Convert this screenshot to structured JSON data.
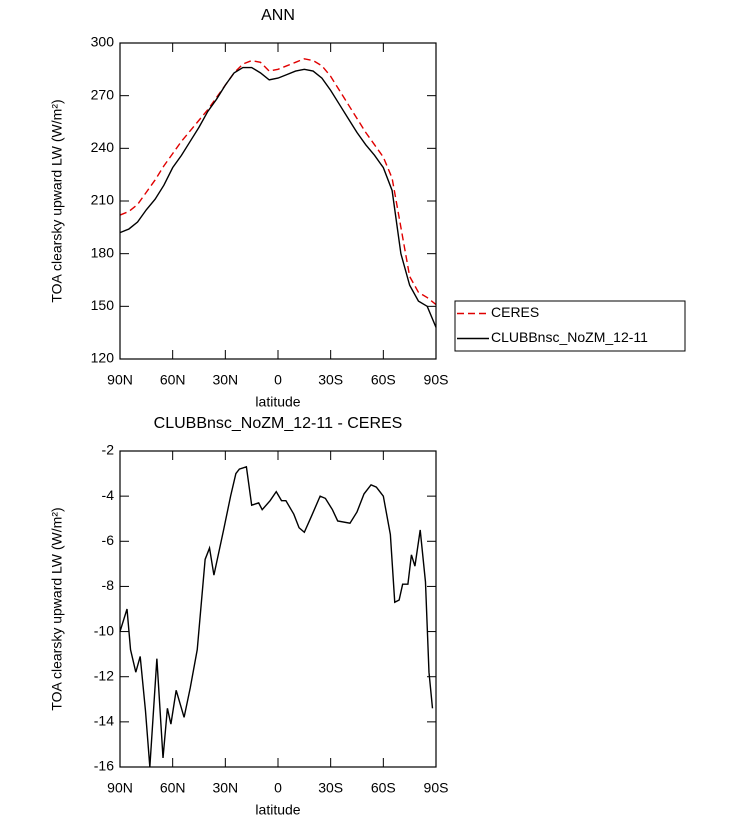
{
  "chart_data": [
    {
      "type": "line",
      "title": "ANN",
      "xlabel": "latitude",
      "ylabel": "TOA clearsky upward LW (W/m²)",
      "x": [
        90,
        85,
        80,
        75,
        70,
        65,
        60,
        55,
        50,
        45,
        40,
        35,
        30,
        25,
        20,
        15,
        10,
        5,
        0,
        -5,
        -10,
        -15,
        -20,
        -25,
        -30,
        -35,
        -40,
        -45,
        -50,
        -55,
        -60,
        -65,
        -70,
        -75,
        -80,
        -85,
        -90
      ],
      "xlim": [
        90,
        -90
      ],
      "xticks": [
        {
          "value": 90,
          "label": "90N"
        },
        {
          "value": 60,
          "label": "60N"
        },
        {
          "value": 30,
          "label": "30N"
        },
        0,
        {
          "value": -30,
          "label": "30S"
        },
        {
          "value": -60,
          "label": "60S"
        },
        {
          "value": -90,
          "label": "90S"
        }
      ],
      "ylim": [
        120,
        300
      ],
      "yticks": [
        120,
        150,
        180,
        210,
        240,
        270,
        300
      ],
      "legend": "right",
      "series": [
        {
          "name": "CERES",
          "color": "#e00000",
          "dash": true,
          "values": [
            202,
            204,
            208,
            215,
            222,
            230,
            237,
            244,
            250,
            256,
            262,
            269,
            276,
            283,
            288,
            290,
            289,
            284,
            285,
            287,
            289,
            291,
            290,
            287,
            281,
            273,
            265,
            257,
            249,
            242,
            235,
            223,
            195,
            167,
            158,
            155,
            151
          ]
        },
        {
          "name": "CLUBBnsc_NoZM_12-11",
          "color": "#000000",
          "dash": false,
          "values": [
            192,
            194,
            198,
            205,
            211,
            219,
            229,
            236,
            244,
            252,
            261,
            268,
            276,
            283,
            286,
            286,
            283,
            279,
            280,
            282,
            284,
            285,
            284,
            280,
            273,
            265,
            257,
            249,
            242,
            236,
            229,
            216,
            180,
            162,
            153,
            150,
            138
          ]
        }
      ]
    },
    {
      "type": "line",
      "title": "CLUBBnsc_NoZM_12-11 - CERES",
      "xlabel": "latitude",
      "ylabel": "TOA clearsky upward LW (W/m²)",
      "x": [
        90,
        86,
        84,
        81,
        78.5,
        75.5,
        73,
        69,
        65.5,
        63,
        61,
        58,
        53.5,
        50,
        46,
        41.5,
        39,
        36.5,
        31,
        27,
        24,
        22,
        18,
        15,
        11,
        9,
        4.5,
        1,
        -2,
        -4.5,
        -7.5,
        -9,
        -12,
        -15,
        -19,
        -24,
        -27,
        -31,
        -34,
        -41,
        -45,
        -49,
        -53,
        -56,
        -60,
        -64,
        -66.5,
        -69,
        -71,
        -74,
        -76,
        -78,
        -81,
        -84,
        -86,
        -88
      ],
      "xlim": [
        90,
        -90
      ],
      "xticks": [
        {
          "value": 90,
          "label": "90N"
        },
        {
          "value": 60,
          "label": "60N"
        },
        {
          "value": 30,
          "label": "30N"
        },
        0,
        {
          "value": -30,
          "label": "30S"
        },
        {
          "value": -60,
          "label": "60S"
        },
        {
          "value": -90,
          "label": "90S"
        }
      ],
      "ylim": [
        -16,
        -2
      ],
      "yticks": [
        -16,
        -14,
        -12,
        -10,
        -8,
        -6,
        -4,
        -2
      ],
      "series": [
        {
          "color": "#000000",
          "dash": false,
          "values": [
            -10,
            -9,
            -10.8,
            -11.8,
            -11.1,
            -13.5,
            -16,
            -11.2,
            -15.6,
            -13.4,
            -14.1,
            -12.6,
            -13.8,
            -12.5,
            -10.8,
            -6.8,
            -6.3,
            -7.5,
            -5.5,
            -4,
            -3,
            -2.8,
            -2.7,
            -4.4,
            -4.3,
            -4.6,
            -4.2,
            -3.8,
            -4.2,
            -4.2,
            -4.6,
            -4.8,
            -5.4,
            -5.6,
            -4.9,
            -4,
            -4.1,
            -4.6,
            -5.1,
            -5.2,
            -4.7,
            -3.9,
            -3.5,
            -3.6,
            -4,
            -5.7,
            -8.7,
            -8.6,
            -7.9,
            -7.9,
            -6.6,
            -7.1,
            -5.5,
            -7.8,
            -11.8,
            -13.4
          ]
        }
      ]
    }
  ]
}
